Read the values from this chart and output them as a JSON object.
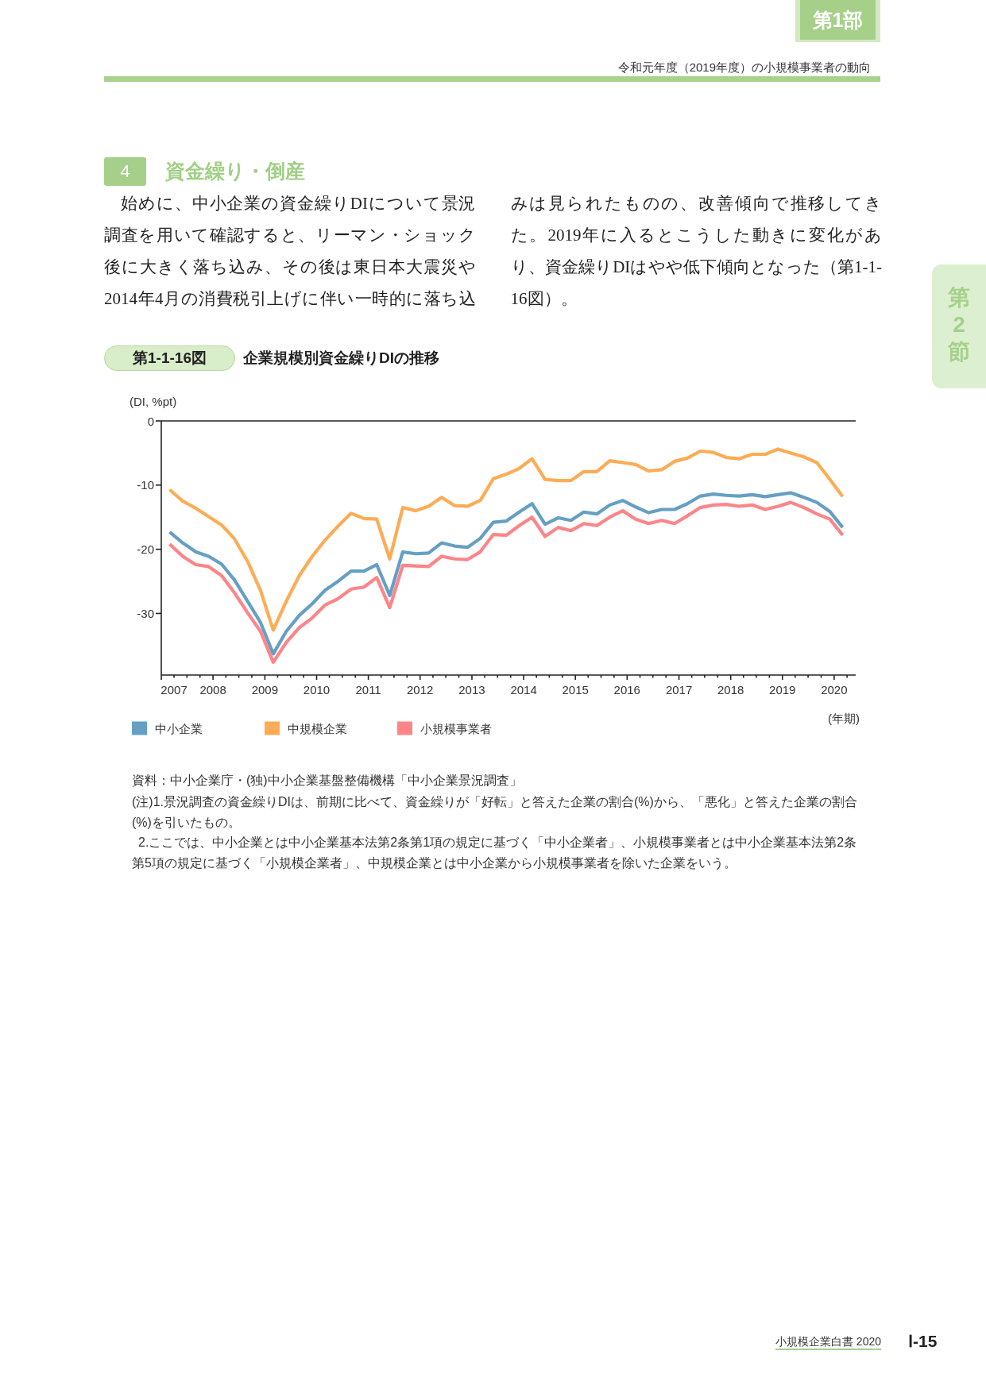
{
  "chart_data": {
    "type": "line",
    "title": "企業規模別資金繰りDIの推移",
    "ylabel": "(DI, %pt)",
    "xlabel": "(年期)",
    "annotations": [
      "第1部",
      "令和元年度（2019年度）の小規模事業者の動向",
      "第2節",
      "4",
      "資金繰り・倒産",
      "始めに、中小企業の資金繰りDIについて景況調査を用いて確認すると、リーマン・ショック後に大きく落ち込み、その後は東日本大震災や2014年4月の消費税引上げに伴い一時的に落ち込みは見られたものの、改善傾向で推移してきた。2019年に入るとこうした動きに変化があり、資金繰りDIはやや低下傾向となった（第1-1-16図）。",
      "第1-1-16図",
      "資料：中小企業庁・(独)中小企業基盤整備機構「中小企業景況調査」",
      "(注)1.景況調査の資金繰りDIは、前期に比べて、資金繰りが「好転」と答えた企業の割合(%)から、「悪化」と答えた企業の割合(%)を引いたもの。",
      "2.ここでは、中小企業とは中小企業基本法第2条第1項の規定に基づく「中小企業者」、小規模事業者とは中小企業基本法第2条第5項の規定に基づく「小規模企業者」、中規模企業とは中小企業から小規模事業者を除いた企業をいう。",
      "小規模企業白書 2020",
      "Ⅰ-15"
    ],
    "x": [
      "2007-03",
      "2007-06",
      "2007-09",
      "2007-12",
      "2008-03",
      "2008-06",
      "2008-09",
      "2008-12",
      "2009-03",
      "2009-06",
      "2009-09",
      "2009-12",
      "2010-03",
      "2010-06",
      "2010-09",
      "2010-12",
      "2011-03",
      "2011-06",
      "2011-09",
      "2011-12",
      "2012-03",
      "2012-06",
      "2012-09",
      "2012-12",
      "2013-03",
      "2013-06",
      "2013-09",
      "2013-12",
      "2014-03",
      "2014-06",
      "2014-09",
      "2014-12",
      "2015-03",
      "2015-06",
      "2015-09",
      "2015-12",
      "2016-03",
      "2016-06",
      "2016-09",
      "2016-12",
      "2017-03",
      "2017-06",
      "2017-09",
      "2017-12",
      "2018-03",
      "2018-06",
      "2018-09",
      "2018-12",
      "2019-03",
      "2019-06",
      "2019-09",
      "2019-12",
      "2020-03"
    ],
    "series": [
      {
        "name": "中小企業",
        "color": "#659fc4",
        "values": [
          -17.3,
          -19.0,
          -20.4,
          -21.1,
          -22.3,
          -24.8,
          -28.1,
          -31.4,
          -36.3,
          -32.8,
          -30.3,
          -28.5,
          -26.4,
          -25.0,
          -23.4,
          -23.4,
          -22.4,
          -27.2,
          -20.4,
          -20.7,
          -20.6,
          -19.0,
          -19.5,
          -19.7,
          -18.3,
          -15.8,
          -15.6,
          -14.2,
          -12.9,
          -16.1,
          -15.1,
          -15.5,
          -14.2,
          -14.5,
          -13.1,
          -12.4,
          -13.4,
          -14.3,
          -13.8,
          -13.8,
          -12.9,
          -11.7,
          -11.4,
          -11.6,
          -11.7,
          -11.5,
          -11.8,
          -11.5,
          -11.2,
          -11.9,
          -12.7,
          -14.1,
          -16.6
        ]
      },
      {
        "name": "中規模企業",
        "color": "#fdac56",
        "values": [
          -10.7,
          -12.5,
          -13.6,
          -14.9,
          -16.2,
          -18.4,
          -21.9,
          -26.4,
          -32.6,
          -28.1,
          -24.1,
          -21.1,
          -18.6,
          -16.4,
          -14.4,
          -15.2,
          -15.3,
          -21.5,
          -13.5,
          -14.0,
          -13.3,
          -11.9,
          -13.2,
          -13.3,
          -12.4,
          -9.0,
          -8.3,
          -7.4,
          -5.9,
          -9.1,
          -9.3,
          -9.3,
          -7.9,
          -7.9,
          -6.2,
          -6.5,
          -6.8,
          -7.8,
          -7.6,
          -6.3,
          -5.8,
          -4.7,
          -4.9,
          -5.7,
          -5.9,
          -5.2,
          -5.2,
          -4.4,
          -5.0,
          -5.6,
          -6.5,
          -9.1,
          -11.8
        ]
      },
      {
        "name": "小規模事業者",
        "color": "#fd8589",
        "values": [
          -19.2,
          -21.1,
          -22.4,
          -22.7,
          -24.1,
          -26.8,
          -29.9,
          -32.8,
          -37.6,
          -34.5,
          -32.2,
          -30.7,
          -28.7,
          -27.7,
          -26.2,
          -25.9,
          -24.4,
          -29.1,
          -22.5,
          -22.6,
          -22.7,
          -21.1,
          -21.5,
          -21.6,
          -20.4,
          -17.7,
          -17.8,
          -16.3,
          -15.0,
          -18.0,
          -16.6,
          -17.1,
          -16.0,
          -16.3,
          -15.0,
          -14.0,
          -15.3,
          -16.0,
          -15.5,
          -16.0,
          -14.8,
          -13.5,
          -13.1,
          -13.0,
          -13.3,
          -13.1,
          -13.8,
          -13.3,
          -12.7,
          -13.5,
          -14.5,
          -15.3,
          -17.8
        ]
      }
    ],
    "xlim": [
      "2007-01",
      "2020-06"
    ],
    "xticks": [
      {
        "value": "2007-01",
        "label": null
      },
      {
        "value": "2007-04",
        "label": "2007"
      },
      {
        "value": "2007-07",
        "label": null
      },
      {
        "value": "2007-10",
        "label": null
      },
      {
        "value": "2008-01",
        "label": "2008"
      },
      {
        "value": "2008-04",
        "label": null
      },
      {
        "value": "2008-07",
        "label": null
      },
      {
        "value": "2008-10",
        "label": null
      },
      {
        "value": "2009-01",
        "label": "2009"
      },
      {
        "value": "2009-04",
        "label": null
      },
      {
        "value": "2009-07",
        "label": null
      },
      {
        "value": "2009-10",
        "label": null
      },
      {
        "value": "2010-01",
        "label": "2010"
      },
      {
        "value": "2010-04",
        "label": null
      },
      {
        "value": "2010-07",
        "label": null
      },
      {
        "value": "2010-10",
        "label": null
      },
      {
        "value": "2011-01",
        "label": "2011"
      },
      {
        "value": "2011-04",
        "label": null
      },
      {
        "value": "2011-07",
        "label": null
      },
      {
        "value": "2011-10",
        "label": null
      },
      {
        "value": "2012-01",
        "label": "2012"
      },
      {
        "value": "2012-04",
        "label": null
      },
      {
        "value": "2012-07",
        "label": null
      },
      {
        "value": "2012-10",
        "label": null
      },
      {
        "value": "2013-01",
        "label": "2013"
      },
      {
        "value": "2013-04",
        "label": null
      },
      {
        "value": "2013-07",
        "label": null
      },
      {
        "value": "2013-10",
        "label": null
      },
      {
        "value": "2014-01",
        "label": "2014"
      },
      {
        "value": "2014-04",
        "label": null
      },
      {
        "value": "2014-07",
        "label": null
      },
      {
        "value": "2014-10",
        "label": null
      },
      {
        "value": "2015-01",
        "label": "2015"
      },
      {
        "value": "2015-04",
        "label": null
      },
      {
        "value": "2015-07",
        "label": null
      },
      {
        "value": "2015-10",
        "label": null
      },
      {
        "value": "2016-01",
        "label": "2016"
      },
      {
        "value": "2016-04",
        "label": null
      },
      {
        "value": "2016-07",
        "label": null
      },
      {
        "value": "2016-10",
        "label": null
      },
      {
        "value": "2017-01",
        "label": "2017"
      },
      {
        "value": "2017-04",
        "label": null
      },
      {
        "value": "2017-07",
        "label": null
      },
      {
        "value": "2017-10",
        "label": null
      },
      {
        "value": "2018-01",
        "label": "2018"
      },
      {
        "value": "2018-04",
        "label": null
      },
      {
        "value": "2018-07",
        "label": null
      },
      {
        "value": "2018-10",
        "label": null
      },
      {
        "value": "2019-01",
        "label": "2019"
      },
      {
        "value": "2019-04",
        "label": null
      },
      {
        "value": "2019-07",
        "label": null
      },
      {
        "value": "2019-10",
        "label": null
      },
      {
        "value": "2020-01",
        "label": "2020"
      },
      {
        "value": "2020-04",
        "label": null
      }
    ],
    "ylim": [
      -39.6,
      0
    ],
    "yticks": [
      0,
      -10,
      -20,
      -30
    ],
    "legend": "bottom",
    "line_style": "solid"
  }
}
